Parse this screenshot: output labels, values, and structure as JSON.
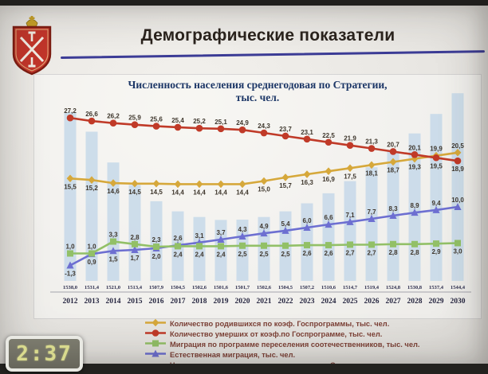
{
  "header": {
    "title": "Демографические показатели"
  },
  "icons": {
    "coat_of_arms": "tula-oblast-emblem"
  },
  "colors": {
    "title_rule": "#3c3c96",
    "legend_text": "#7c4036",
    "chart_title": "#1d3767"
  },
  "clock": {
    "time": "2:37"
  },
  "chart_data": {
    "type": "line+bar",
    "title_line1": "Численность населения среднегодовая по Стратегии,",
    "title_line2": "тыс. чел.",
    "categories": [
      2012,
      2013,
      2014,
      2015,
      2016,
      2017,
      2018,
      2019,
      2020,
      2021,
      2022,
      2023,
      2024,
      2025,
      2026,
      2027,
      2028,
      2029,
      2030
    ],
    "bars": {
      "name": "Численность населения среднегодовая по Стратегии, тыс. чел.",
      "color": "#c6d8e9",
      "values": [
        1538.0,
        1531.4,
        1521.0,
        1513.4,
        1507.9,
        1504.5,
        1502.6,
        1501.6,
        1501.7,
        1502.6,
        1504.5,
        1507.2,
        1510.6,
        1514.7,
        1519.4,
        1524.8,
        1530.8,
        1537.4,
        1544.4
      ]
    },
    "series": [
      {
        "name": "Количество родившихся по коэф. Госпрограммы, тыс. чел.",
        "marker": "diamond",
        "color": "#d6a83b",
        "values": [
          15.5,
          15.2,
          14.6,
          14.5,
          14.5,
          14.4,
          14.4,
          14.4,
          14.4,
          15.0,
          15.7,
          16.3,
          16.9,
          17.5,
          18.1,
          18.7,
          19.3,
          19.9,
          20.5
        ]
      },
      {
        "name": "Количество умерших от коэф.по Госпрограмме, тыс. чел.",
        "marker": "circle",
        "color": "#c03a28",
        "values": [
          27.2,
          26.6,
          26.2,
          25.9,
          25.6,
          25.4,
          25.2,
          25.1,
          24.9,
          24.3,
          23.7,
          23.1,
          22.5,
          21.9,
          21.3,
          20.7,
          20.1,
          19.5,
          18.9
        ]
      },
      {
        "name": "Миграция по программе переселения соотечественников, тыс. чел.",
        "marker": "square",
        "color": "#92c067",
        "values": [
          1.0,
          1.0,
          3.3,
          2.8,
          2.3,
          2.4,
          2.4,
          2.4,
          2.5,
          2.5,
          2.5,
          2.6,
          2.6,
          2.7,
          2.7,
          2.8,
          2.8,
          2.9,
          3.0
        ]
      },
      {
        "name": "Естественная миграция, тыс. чел.",
        "marker": "triangle",
        "color": "#6d6fd1",
        "values": [
          -1.3,
          0.9,
          1.5,
          1.7,
          2.0,
          2.6,
          3.1,
          3.7,
          4.3,
          4.9,
          5.4,
          6.0,
          6.6,
          7.1,
          7.7,
          8.3,
          8.9,
          9.4,
          10.0
        ]
      }
    ],
    "legend_position": "bottom",
    "grid": false,
    "value_axis_hidden": true
  }
}
